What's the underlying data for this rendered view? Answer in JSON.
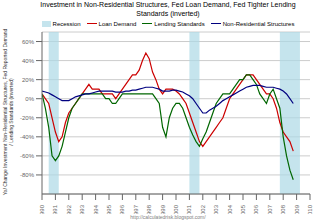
{
  "chart_data": {
    "type": "line",
    "title": "Investment in Non-Residential Structures, Fed Loan Demand, Fed Tighter Lending\nStandards (inverted)",
    "y_label": "Yo/ Change Investment Non-Residential Structures, Fed Reported Demand\n/ Lending Standards (inverted)",
    "annotations": [
      "http://calculatedrisk.blogspot.com/"
    ],
    "x": [
      1990.0,
      1990.25,
      1990.5,
      1990.75,
      1991.0,
      1991.25,
      1991.5,
      1991.75,
      1992.0,
      1992.25,
      1992.5,
      1992.75,
      1993.0,
      1993.25,
      1993.5,
      1993.75,
      1994.0,
      1994.25,
      1994.5,
      1994.75,
      1995.0,
      1995.25,
      1995.5,
      1995.75,
      1996.0,
      1996.25,
      1996.5,
      1996.75,
      1997.0,
      1997.25,
      1997.5,
      1997.75,
      1998.0,
      1998.25,
      1998.5,
      1998.75,
      1999.0,
      1999.25,
      1999.5,
      1999.75,
      2000.0,
      2000.25,
      2000.5,
      2000.75,
      2001.0,
      2001.25,
      2001.5,
      2001.75,
      2002.0,
      2002.25,
      2002.5,
      2002.75,
      2003.0,
      2003.25,
      2003.5,
      2003.75,
      2004.0,
      2004.25,
      2004.5,
      2004.75,
      2005.0,
      2005.25,
      2005.5,
      2005.75,
      2006.0,
      2006.25,
      2006.5,
      2006.75,
      2007.0,
      2007.25,
      2007.5,
      2007.75,
      2008.0,
      2008.25,
      2008.5,
      2008.75
    ],
    "series": [
      {
        "name": "Loan Demand",
        "color": "#cc0000",
        "values": [
          5,
          0,
          -5,
          -20,
          -35,
          -45,
          -40,
          -25,
          -15,
          -10,
          -5,
          0,
          5,
          10,
          15,
          10,
          10,
          10,
          5,
          5,
          5,
          5,
          0,
          5,
          10,
          15,
          20,
          25,
          25,
          30,
          40,
          48,
          42,
          28,
          20,
          10,
          5,
          10,
          10,
          10,
          8,
          5,
          0,
          -5,
          -15,
          -25,
          -35,
          -45,
          -50,
          -45,
          -40,
          -35,
          -30,
          -25,
          -20,
          -10,
          0,
          5,
          10,
          15,
          20,
          25,
          25,
          25,
          20,
          15,
          10,
          5,
          5,
          0,
          -10,
          -25,
          -35,
          -40,
          -45,
          -55
        ]
      },
      {
        "name": "Lending Standards",
        "color": "#006600",
        "values": [
          5,
          -10,
          -30,
          -60,
          -65,
          -60,
          -50,
          -35,
          -20,
          -10,
          -5,
          0,
          5,
          5,
          5,
          5,
          5,
          5,
          5,
          0,
          0,
          -5,
          -5,
          0,
          5,
          5,
          5,
          5,
          5,
          5,
          5,
          5,
          5,
          5,
          0,
          -5,
          -30,
          -40,
          -20,
          -10,
          -5,
          -5,
          -10,
          -20,
          -30,
          -38,
          -45,
          -50,
          -42,
          -35,
          -25,
          -15,
          -5,
          0,
          5,
          5,
          5,
          10,
          15,
          20,
          20,
          25,
          25,
          20,
          15,
          5,
          0,
          -5,
          5,
          10,
          0,
          -10,
          -40,
          -60,
          -75,
          -85
        ]
      },
      {
        "name": "Non-Residential Structures",
        "color": "#000080",
        "values": [
          8,
          7,
          6,
          4,
          2,
          0,
          -2,
          -2,
          -2,
          0,
          2,
          3,
          4,
          5,
          5,
          6,
          7,
          8,
          8,
          8,
          8,
          8,
          7,
          7,
          7,
          8,
          8,
          9,
          9,
          10,
          11,
          12,
          12,
          12,
          11,
          10,
          8,
          8,
          8,
          9,
          9,
          8,
          7,
          5,
          3,
          0,
          -5,
          -10,
          -15,
          -15,
          -12,
          -10,
          -8,
          -5,
          -2,
          0,
          2,
          4,
          6,
          8,
          10,
          12,
          13,
          14,
          14,
          14,
          13,
          12,
          12,
          12,
          11,
          10,
          8,
          5,
          0,
          -5
        ]
      }
    ],
    "shaded_periods": {
      "name": "Recession",
      "color": "#add8e6",
      "ranges": [
        [
          1990.5,
          1991.25
        ],
        [
          2001.0,
          2001.75
        ],
        [
          2007.75,
          2009.25
        ]
      ]
    },
    "xlim": [
      1990,
      2010
    ],
    "xticks": [
      1990,
      1991,
      1992,
      1993,
      1994,
      1995,
      1996,
      1997,
      1998,
      1999,
      2000,
      2001,
      2002,
      2003,
      2004,
      2005,
      2006,
      2007,
      2008,
      2009,
      2010
    ],
    "ylim": [
      -100,
      70
    ],
    "yticks": [
      {
        "value": -80,
        "label": "-80%"
      },
      {
        "value": -60,
        "label": "-60%"
      },
      {
        "value": -40,
        "label": "-40%"
      },
      {
        "value": -20,
        "label": "-20%"
      },
      {
        "value": 0,
        "label": "0%"
      },
      {
        "value": 20,
        "label": "20%"
      },
      {
        "value": 40,
        "label": "40%"
      },
      {
        "value": 60,
        "label": "60%"
      }
    ],
    "grid": true,
    "legend": "top"
  }
}
